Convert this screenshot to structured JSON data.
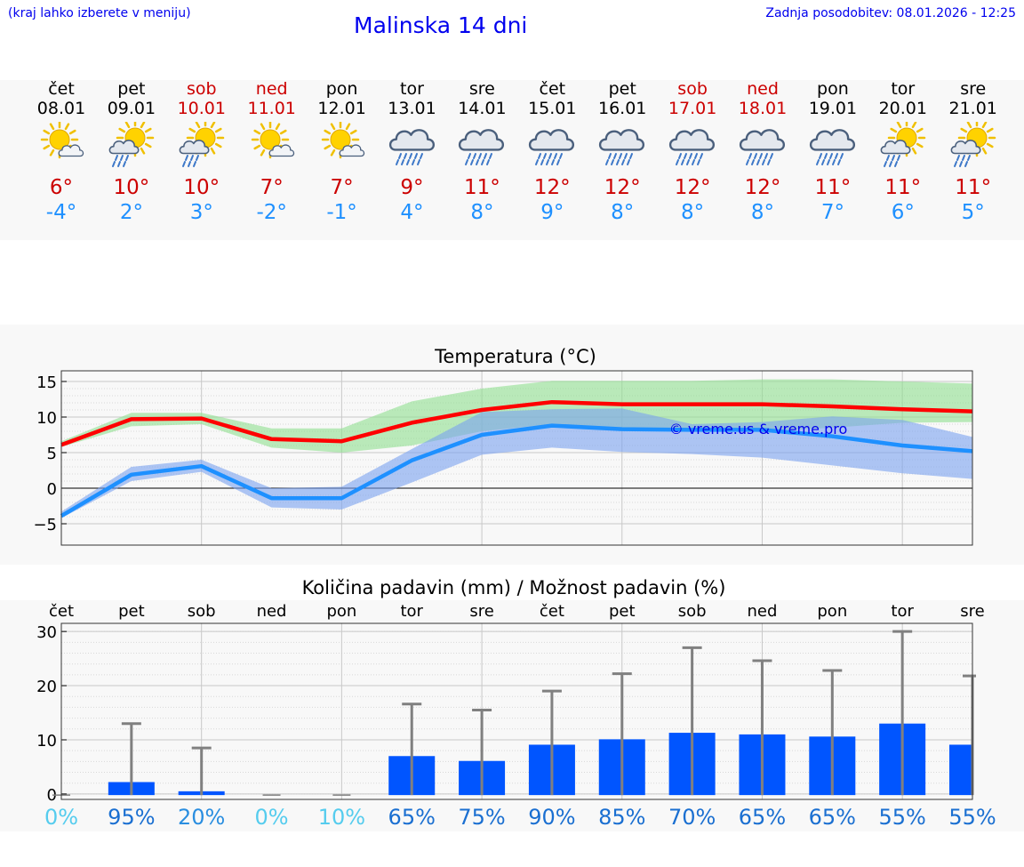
{
  "header": {
    "note": "(kraj lahko izberete v meniju)",
    "title": "Malinska 14 dni",
    "updated": "Zadnja posodobitev: 08.01.2026 - 12:25"
  },
  "colors": {
    "max": "#cc0000",
    "min": "#1e90ff",
    "weekend": "#cc0000",
    "link": "#0000ee",
    "bar": "#0055ff",
    "errbar": "#808080"
  },
  "days": [
    {
      "name": "čet",
      "date": "08.01",
      "weekend": false,
      "icon": "sun-cloud",
      "tmax": "6°",
      "tmin": "-4°"
    },
    {
      "name": "pet",
      "date": "09.01",
      "weekend": false,
      "icon": "sun-cloud-rain",
      "tmax": "10°",
      "tmin": "2°"
    },
    {
      "name": "sob",
      "date": "10.01",
      "weekend": true,
      "icon": "sun-cloud-rain",
      "tmax": "10°",
      "tmin": "3°"
    },
    {
      "name": "ned",
      "date": "11.01",
      "weekend": true,
      "icon": "sun-cloud",
      "tmax": "7°",
      "tmin": "-2°"
    },
    {
      "name": "pon",
      "date": "12.01",
      "weekend": false,
      "icon": "sun-cloud",
      "tmax": "7°",
      "tmin": "-1°"
    },
    {
      "name": "tor",
      "date": "13.01",
      "weekend": false,
      "icon": "cloud-rain",
      "tmax": "9°",
      "tmin": "4°"
    },
    {
      "name": "sre",
      "date": "14.01",
      "weekend": false,
      "icon": "cloud-rain",
      "tmax": "11°",
      "tmin": "8°"
    },
    {
      "name": "čet",
      "date": "15.01",
      "weekend": false,
      "icon": "cloud-rain",
      "tmax": "12°",
      "tmin": "9°"
    },
    {
      "name": "pet",
      "date": "16.01",
      "weekend": false,
      "icon": "cloud-rain",
      "tmax": "12°",
      "tmin": "8°"
    },
    {
      "name": "sob",
      "date": "17.01",
      "weekend": true,
      "icon": "cloud-rain",
      "tmax": "12°",
      "tmin": "8°"
    },
    {
      "name": "ned",
      "date": "18.01",
      "weekend": true,
      "icon": "cloud-rain",
      "tmax": "12°",
      "tmin": "8°"
    },
    {
      "name": "pon",
      "date": "19.01",
      "weekend": false,
      "icon": "cloud-rain",
      "tmax": "11°",
      "tmin": "7°"
    },
    {
      "name": "tor",
      "date": "20.01",
      "weekend": false,
      "icon": "sun-cloud-rain",
      "tmax": "11°",
      "tmin": "6°"
    },
    {
      "name": "sre",
      "date": "21.01",
      "weekend": false,
      "icon": "sun-cloud-rain",
      "tmax": "11°",
      "tmin": "5°"
    }
  ],
  "chart_data": [
    {
      "type": "line",
      "title": "Temperatura (°C)",
      "watermark": "© vreme.us & vreme.pro",
      "x": [
        0,
        1,
        2,
        3,
        4,
        5,
        6,
        7,
        8,
        9,
        10,
        11,
        12,
        13
      ],
      "ylim": [
        -8,
        16.5
      ],
      "yticks": [
        15,
        10,
        5,
        0,
        -5
      ],
      "ytick_labels": [
        "15",
        "10",
        "5",
        "0",
        "−5"
      ],
      "series": [
        {
          "name": "max",
          "color": "#ff0000",
          "values": [
            6.1,
            9.7,
            9.8,
            6.9,
            6.6,
            9.2,
            11.0,
            12.1,
            11.8,
            11.8,
            11.8,
            11.5,
            11.1,
            10.8
          ],
          "band_low": [
            5.8,
            8.7,
            9.0,
            5.7,
            5.0,
            6.0,
            8.0,
            9.0,
            8.0,
            8.0,
            8.0,
            8.5,
            9.2,
            9.3
          ],
          "band_high": [
            6.6,
            10.6,
            10.6,
            8.4,
            8.4,
            12.2,
            14.0,
            15.1,
            15.1,
            15.1,
            15.3,
            15.3,
            15.0,
            14.7
          ]
        },
        {
          "name": "min",
          "color": "#1e90ff",
          "values": [
            -3.9,
            1.9,
            3.1,
            -1.4,
            -1.4,
            3.9,
            7.5,
            8.8,
            8.3,
            8.2,
            8.2,
            7.3,
            6.0,
            5.2
          ],
          "band_low": [
            -4.2,
            1.0,
            2.3,
            -2.7,
            -3.0,
            0.8,
            4.7,
            5.7,
            5.1,
            4.8,
            4.3,
            3.2,
            2.1,
            1.3
          ],
          "band_high": [
            -3.3,
            3.0,
            4.0,
            0.0,
            0.2,
            5.5,
            10.7,
            11.1,
            11.2,
            9.0,
            9.3,
            10.1,
            9.6,
            7.2
          ]
        }
      ]
    },
    {
      "type": "bar",
      "title": "Količina padavin (mm) / Možnost padavin (%)",
      "categories": [
        "čet",
        "pet",
        "sob",
        "ned",
        "pon",
        "tor",
        "sre",
        "čet",
        "pet",
        "sob",
        "ned",
        "pon",
        "tor",
        "sre"
      ],
      "values": [
        0,
        2.2,
        0.5,
        0,
        0,
        7.0,
        6.1,
        9.1,
        10.1,
        11.3,
        11.0,
        10.6,
        13.0,
        9.1
      ],
      "error_high": [
        0,
        13.0,
        8.5,
        0,
        0,
        16.6,
        15.5,
        19.0,
        22.2,
        27.0,
        24.6,
        22.8,
        30.0,
        21.8
      ],
      "ylim": [
        -1,
        31.5
      ],
      "yticks": [
        30,
        20,
        10,
        0
      ],
      "ytick_labels": [
        "30",
        "20",
        "10",
        "0"
      ],
      "probability": [
        "0%",
        "95%",
        "20%",
        "0%",
        "10%",
        "65%",
        "75%",
        "90%",
        "85%",
        "70%",
        "65%",
        "65%",
        "55%",
        "55%"
      ],
      "probability_colors": [
        "#55ccee",
        "#1a6fd1",
        "#2a8ee0",
        "#55ccee",
        "#55ccee",
        "#1a6fd1",
        "#1a6fd1",
        "#1a6fd1",
        "#1a6fd1",
        "#1a6fd1",
        "#1a6fd1",
        "#1a6fd1",
        "#1a6fd1",
        "#1a6fd1"
      ]
    }
  ]
}
